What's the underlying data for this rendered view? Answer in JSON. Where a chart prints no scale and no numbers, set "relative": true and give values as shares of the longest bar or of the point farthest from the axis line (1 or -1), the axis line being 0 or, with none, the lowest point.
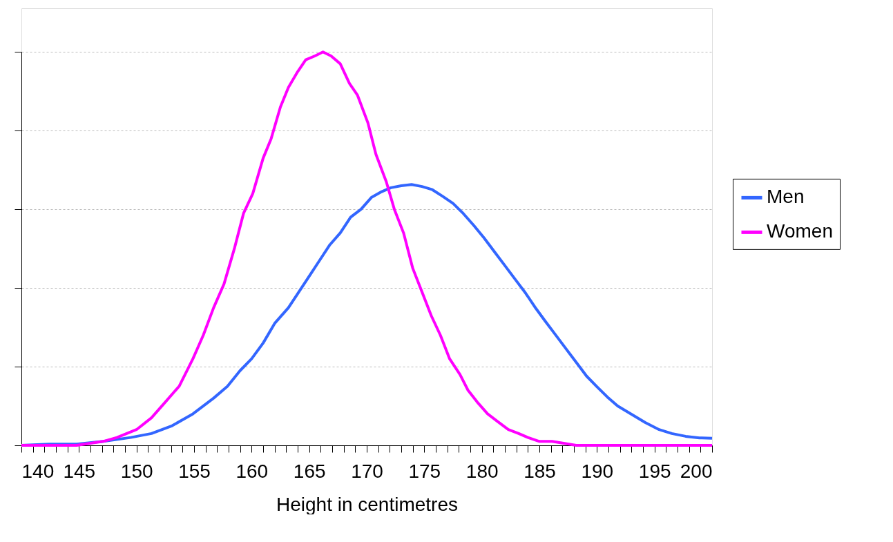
{
  "chart_data": {
    "type": "line",
    "relative": true,
    "xlabel": "Height in centimetres",
    "xlim": [
      140,
      200
    ],
    "xticks": [
      140,
      {
        "value": 141,
        "label": null
      },
      {
        "value": 142,
        "label": null
      },
      {
        "value": 143,
        "label": null
      },
      {
        "value": 144,
        "label": null
      },
      145,
      {
        "value": 146,
        "label": null
      },
      {
        "value": 147,
        "label": null
      },
      {
        "value": 148,
        "label": null
      },
      {
        "value": 149,
        "label": null
      },
      150,
      {
        "value": 151,
        "label": null
      },
      {
        "value": 152,
        "label": null
      },
      {
        "value": 153,
        "label": null
      },
      {
        "value": 154,
        "label": null
      },
      155,
      {
        "value": 156,
        "label": null
      },
      {
        "value": 157,
        "label": null
      },
      {
        "value": 158,
        "label": null
      },
      {
        "value": 159,
        "label": null
      },
      160,
      {
        "value": 161,
        "label": null
      },
      {
        "value": 162,
        "label": null
      },
      {
        "value": 163,
        "label": null
      },
      {
        "value": 164,
        "label": null
      },
      165,
      {
        "value": 166,
        "label": null
      },
      {
        "value": 167,
        "label": null
      },
      {
        "value": 168,
        "label": null
      },
      {
        "value": 169,
        "label": null
      },
      170,
      {
        "value": 171,
        "label": null
      },
      {
        "value": 172,
        "label": null
      },
      {
        "value": 173,
        "label": null
      },
      {
        "value": 174,
        "label": null
      },
      175,
      {
        "value": 176,
        "label": null
      },
      {
        "value": 177,
        "label": null
      },
      {
        "value": 178,
        "label": null
      },
      {
        "value": 179,
        "label": null
      },
      180,
      {
        "value": 181,
        "label": null
      },
      {
        "value": 182,
        "label": null
      },
      {
        "value": 183,
        "label": null
      },
      {
        "value": 184,
        "label": null
      },
      185,
      {
        "value": 186,
        "label": null
      },
      {
        "value": 187,
        "label": null
      },
      {
        "value": 188,
        "label": null
      },
      {
        "value": 189,
        "label": null
      },
      190,
      {
        "value": 191,
        "label": null
      },
      {
        "value": 192,
        "label": null
      },
      {
        "value": 193,
        "label": null
      },
      {
        "value": 194,
        "label": null
      },
      195,
      {
        "value": 196,
        "label": null
      },
      {
        "value": 197,
        "label": null
      },
      {
        "value": 198,
        "label": null
      },
      {
        "value": 199,
        "label": null
      },
      200
    ],
    "tick_labels": "x",
    "grid": "y",
    "legend": "right",
    "marker": "none",
    "line_style": "solid",
    "series": [
      {
        "name": "Men",
        "color": "#3366ff",
        "x": [
          140,
          142.4,
          144.8,
          147.1,
          149.5,
          151.3,
          153.1,
          154.9,
          156.7,
          157.9,
          159,
          160,
          161,
          162,
          163.2,
          164.1,
          165,
          165.9,
          166.8,
          167.7,
          168.6,
          169.5,
          170.4,
          171.3,
          172.1,
          173,
          173.9,
          174.8,
          175.7,
          176.6,
          177.5,
          178.4,
          179.3,
          180.2,
          181.1,
          182,
          182.9,
          183.8,
          184.6,
          185.5,
          186.4,
          187.3,
          188.2,
          189.1,
          190,
          190.9,
          191.8,
          193,
          194.2,
          195.4,
          196.5,
          197.7,
          198.9,
          200
        ],
        "values": [
          0,
          0.003,
          0.003,
          0.01,
          0.02,
          0.03,
          0.05,
          0.08,
          0.12,
          0.15,
          0.19,
          0.22,
          0.26,
          0.31,
          0.35,
          0.39,
          0.43,
          0.47,
          0.51,
          0.54,
          0.58,
          0.6,
          0.63,
          0.645,
          0.655,
          0.66,
          0.663,
          0.658,
          0.65,
          0.633,
          0.615,
          0.589,
          0.559,
          0.527,
          0.492,
          0.457,
          0.422,
          0.387,
          0.352,
          0.316,
          0.281,
          0.246,
          0.211,
          0.176,
          0.149,
          0.123,
          0.1,
          0.079,
          0.058,
          0.04,
          0.03,
          0.023,
          0.019,
          0.018
        ]
      },
      {
        "name": "Women",
        "color": "#ff00ff",
        "x": [
          140,
          144.8,
          147.1,
          148.3,
          150,
          151.3,
          152.5,
          153.7,
          154.9,
          155.8,
          156.7,
          157.6,
          158.5,
          159.3,
          160.1,
          161,
          161.7,
          162.5,
          163.2,
          164,
          164.7,
          165.5,
          166.2,
          166.9,
          167.7,
          168.5,
          169.2,
          170.1,
          170.8,
          171.7,
          172.4,
          173.2,
          174,
          174.8,
          175.6,
          176.4,
          177.2,
          178.1,
          178.8,
          179.6,
          180.5,
          181.4,
          182.3,
          183.2,
          184,
          185,
          186.1,
          188.2,
          200
        ],
        "values": [
          0,
          0,
          0.01,
          0.02,
          0.04,
          0.07,
          0.11,
          0.15,
          0.22,
          0.28,
          0.35,
          0.41,
          0.5,
          0.59,
          0.64,
          0.73,
          0.78,
          0.86,
          0.91,
          0.95,
          0.98,
          0.99,
          1,
          0.99,
          0.97,
          0.92,
          0.89,
          0.82,
          0.74,
          0.67,
          0.6,
          0.54,
          0.45,
          0.39,
          0.33,
          0.28,
          0.22,
          0.18,
          0.14,
          0.11,
          0.08,
          0.06,
          0.04,
          0.03,
          0.02,
          0.01,
          0.01,
          0,
          0
        ]
      }
    ]
  }
}
